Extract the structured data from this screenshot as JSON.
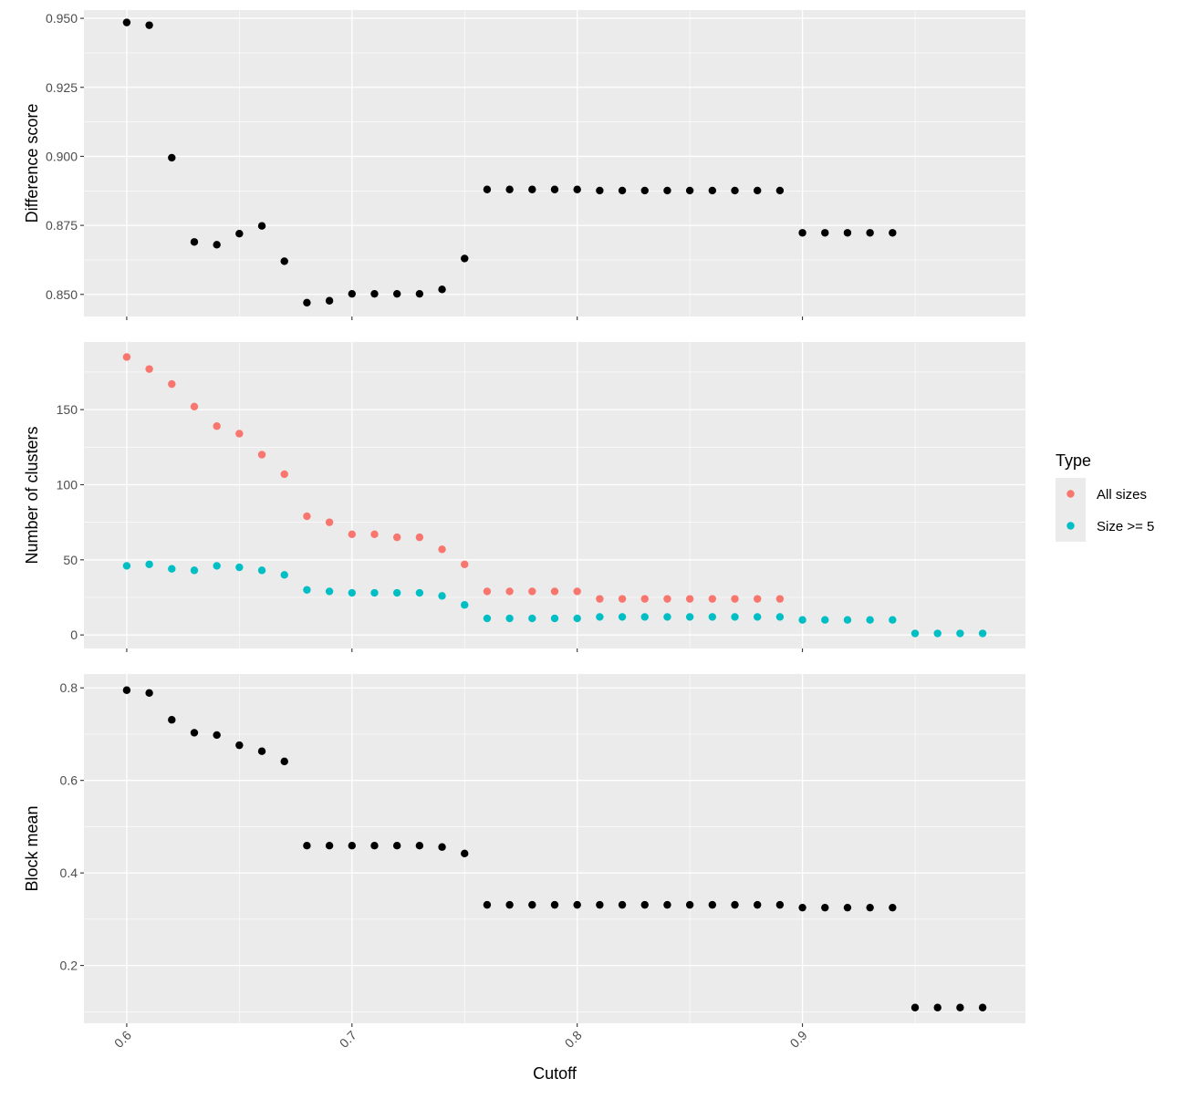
{
  "chart_data": [
    {
      "type": "scatter",
      "ylabel": "Difference score",
      "ylim": [
        0.842,
        0.953
      ],
      "yticks": [
        {
          "value": 0.85,
          "label": "0.850"
        },
        {
          "value": 0.875,
          "label": "0.875"
        },
        {
          "value": 0.9,
          "label": "0.900"
        },
        {
          "value": 0.925,
          "label": "0.925"
        },
        {
          "value": 0.95,
          "label": "0.950"
        }
      ],
      "series": [
        {
          "color": "#000000",
          "points": [
            [
              0.6,
              0.9485
            ],
            [
              0.61,
              0.9475
            ],
            [
              0.62,
              0.8995
            ],
            [
              0.63,
              0.869
            ],
            [
              0.64,
              0.868
            ],
            [
              0.65,
              0.872
            ],
            [
              0.66,
              0.8748
            ],
            [
              0.67,
              0.862
            ],
            [
              0.68,
              0.847
            ],
            [
              0.69,
              0.8477
            ],
            [
              0.7,
              0.8502
            ],
            [
              0.71,
              0.8502
            ],
            [
              0.72,
              0.8502
            ],
            [
              0.73,
              0.8502
            ],
            [
              0.74,
              0.8518
            ],
            [
              0.75,
              0.863
            ],
            [
              0.76,
              0.888
            ],
            [
              0.77,
              0.888
            ],
            [
              0.78,
              0.888
            ],
            [
              0.79,
              0.888
            ],
            [
              0.8,
              0.888
            ],
            [
              0.81,
              0.8876
            ],
            [
              0.82,
              0.8876
            ],
            [
              0.83,
              0.8876
            ],
            [
              0.84,
              0.8876
            ],
            [
              0.85,
              0.8876
            ],
            [
              0.86,
              0.8876
            ],
            [
              0.87,
              0.8876
            ],
            [
              0.88,
              0.8876
            ],
            [
              0.89,
              0.8876
            ],
            [
              0.9,
              0.8723
            ],
            [
              0.91,
              0.8723
            ],
            [
              0.92,
              0.8723
            ],
            [
              0.93,
              0.8723
            ],
            [
              0.94,
              0.8723
            ]
          ]
        }
      ]
    },
    {
      "type": "scatter",
      "ylabel": "Number of clusters",
      "ylim": [
        -9,
        195
      ],
      "yticks": [
        {
          "value": 0,
          "label": "0"
        },
        {
          "value": 50,
          "label": "50"
        },
        {
          "value": 100,
          "label": "100"
        },
        {
          "value": 150,
          "label": "150"
        }
      ],
      "series": [
        {
          "name": "All sizes",
          "color": "#F8766D",
          "points": [
            [
              0.6,
              185
            ],
            [
              0.61,
              177
            ],
            [
              0.62,
              167
            ],
            [
              0.63,
              152
            ],
            [
              0.64,
              139
            ],
            [
              0.65,
              134
            ],
            [
              0.66,
              120
            ],
            [
              0.67,
              107
            ],
            [
              0.68,
              79
            ],
            [
              0.69,
              75
            ],
            [
              0.7,
              67
            ],
            [
              0.71,
              67
            ],
            [
              0.72,
              65
            ],
            [
              0.73,
              65
            ],
            [
              0.74,
              57
            ],
            [
              0.75,
              47
            ],
            [
              0.76,
              29
            ],
            [
              0.77,
              29
            ],
            [
              0.78,
              29
            ],
            [
              0.79,
              29
            ],
            [
              0.8,
              29
            ],
            [
              0.81,
              24
            ],
            [
              0.82,
              24
            ],
            [
              0.83,
              24
            ],
            [
              0.84,
              24
            ],
            [
              0.85,
              24
            ],
            [
              0.86,
              24
            ],
            [
              0.87,
              24
            ],
            [
              0.88,
              24
            ],
            [
              0.89,
              24
            ]
          ]
        },
        {
          "name": "Size >= 5",
          "color": "#00BFC4",
          "points": [
            [
              0.6,
              46
            ],
            [
              0.61,
              47
            ],
            [
              0.62,
              44
            ],
            [
              0.63,
              43
            ],
            [
              0.64,
              46
            ],
            [
              0.65,
              45
            ],
            [
              0.66,
              43
            ],
            [
              0.67,
              40
            ],
            [
              0.68,
              30
            ],
            [
              0.69,
              29
            ],
            [
              0.7,
              28
            ],
            [
              0.71,
              28
            ],
            [
              0.72,
              28
            ],
            [
              0.73,
              28
            ],
            [
              0.74,
              26
            ],
            [
              0.75,
              20
            ],
            [
              0.76,
              11
            ],
            [
              0.77,
              11
            ],
            [
              0.78,
              11
            ],
            [
              0.79,
              11
            ],
            [
              0.8,
              11
            ],
            [
              0.81,
              12
            ],
            [
              0.82,
              12
            ],
            [
              0.83,
              12
            ],
            [
              0.84,
              12
            ],
            [
              0.85,
              12
            ],
            [
              0.86,
              12
            ],
            [
              0.87,
              12
            ],
            [
              0.88,
              12
            ],
            [
              0.89,
              12
            ],
            [
              0.9,
              10
            ],
            [
              0.91,
              10
            ],
            [
              0.92,
              10
            ],
            [
              0.93,
              10
            ],
            [
              0.94,
              10
            ],
            [
              0.95,
              1
            ],
            [
              0.96,
              1
            ],
            [
              0.97,
              1
            ],
            [
              0.98,
              1
            ]
          ]
        }
      ]
    },
    {
      "type": "scatter",
      "ylabel": "Block mean",
      "ylim": [
        0.075,
        0.83
      ],
      "yticks": [
        {
          "value": 0.2,
          "label": "0.2"
        },
        {
          "value": 0.4,
          "label": "0.4"
        },
        {
          "value": 0.6,
          "label": "0.6"
        },
        {
          "value": 0.8,
          "label": "0.8"
        }
      ],
      "series": [
        {
          "color": "#000000",
          "points": [
            [
              0.6,
              0.795
            ],
            [
              0.61,
              0.789
            ],
            [
              0.62,
              0.731
            ],
            [
              0.63,
              0.703
            ],
            [
              0.64,
              0.698
            ],
            [
              0.65,
              0.676
            ],
            [
              0.66,
              0.663
            ],
            [
              0.67,
              0.641
            ],
            [
              0.68,
              0.459
            ],
            [
              0.69,
              0.459
            ],
            [
              0.7,
              0.459
            ],
            [
              0.71,
              0.459
            ],
            [
              0.72,
              0.459
            ],
            [
              0.73,
              0.459
            ],
            [
              0.74,
              0.456
            ],
            [
              0.75,
              0.442
            ],
            [
              0.76,
              0.331
            ],
            [
              0.77,
              0.331
            ],
            [
              0.78,
              0.331
            ],
            [
              0.79,
              0.331
            ],
            [
              0.8,
              0.331
            ],
            [
              0.81,
              0.331
            ],
            [
              0.82,
              0.331
            ],
            [
              0.83,
              0.331
            ],
            [
              0.84,
              0.331
            ],
            [
              0.85,
              0.331
            ],
            [
              0.86,
              0.331
            ],
            [
              0.87,
              0.331
            ],
            [
              0.88,
              0.331
            ],
            [
              0.89,
              0.331
            ],
            [
              0.9,
              0.325
            ],
            [
              0.91,
              0.325
            ],
            [
              0.92,
              0.325
            ],
            [
              0.93,
              0.325
            ],
            [
              0.94,
              0.325
            ],
            [
              0.95,
              0.109
            ],
            [
              0.96,
              0.109
            ],
            [
              0.97,
              0.109
            ],
            [
              0.98,
              0.109
            ]
          ]
        }
      ]
    }
  ],
  "shared_x": {
    "xlabel": "Cutoff",
    "xlim": [
      0.581,
      0.999
    ],
    "xticks": [
      {
        "value": 0.6,
        "label": "0.6"
      },
      {
        "value": 0.7,
        "label": "0.7"
      },
      {
        "value": 0.8,
        "label": "0.8"
      },
      {
        "value": 0.9,
        "label": "0.9"
      }
    ]
  },
  "legend": {
    "title": "Type",
    "position": "right",
    "items": [
      {
        "label": "All sizes",
        "color": "#F8766D"
      },
      {
        "label": "Size >= 5",
        "color": "#00BFC4"
      }
    ]
  },
  "theme": {
    "panel_bg": "#EBEBEB",
    "grid_major": "#FFFFFF",
    "axis_text": "#4D4D4D",
    "title_text": "#000000"
  }
}
